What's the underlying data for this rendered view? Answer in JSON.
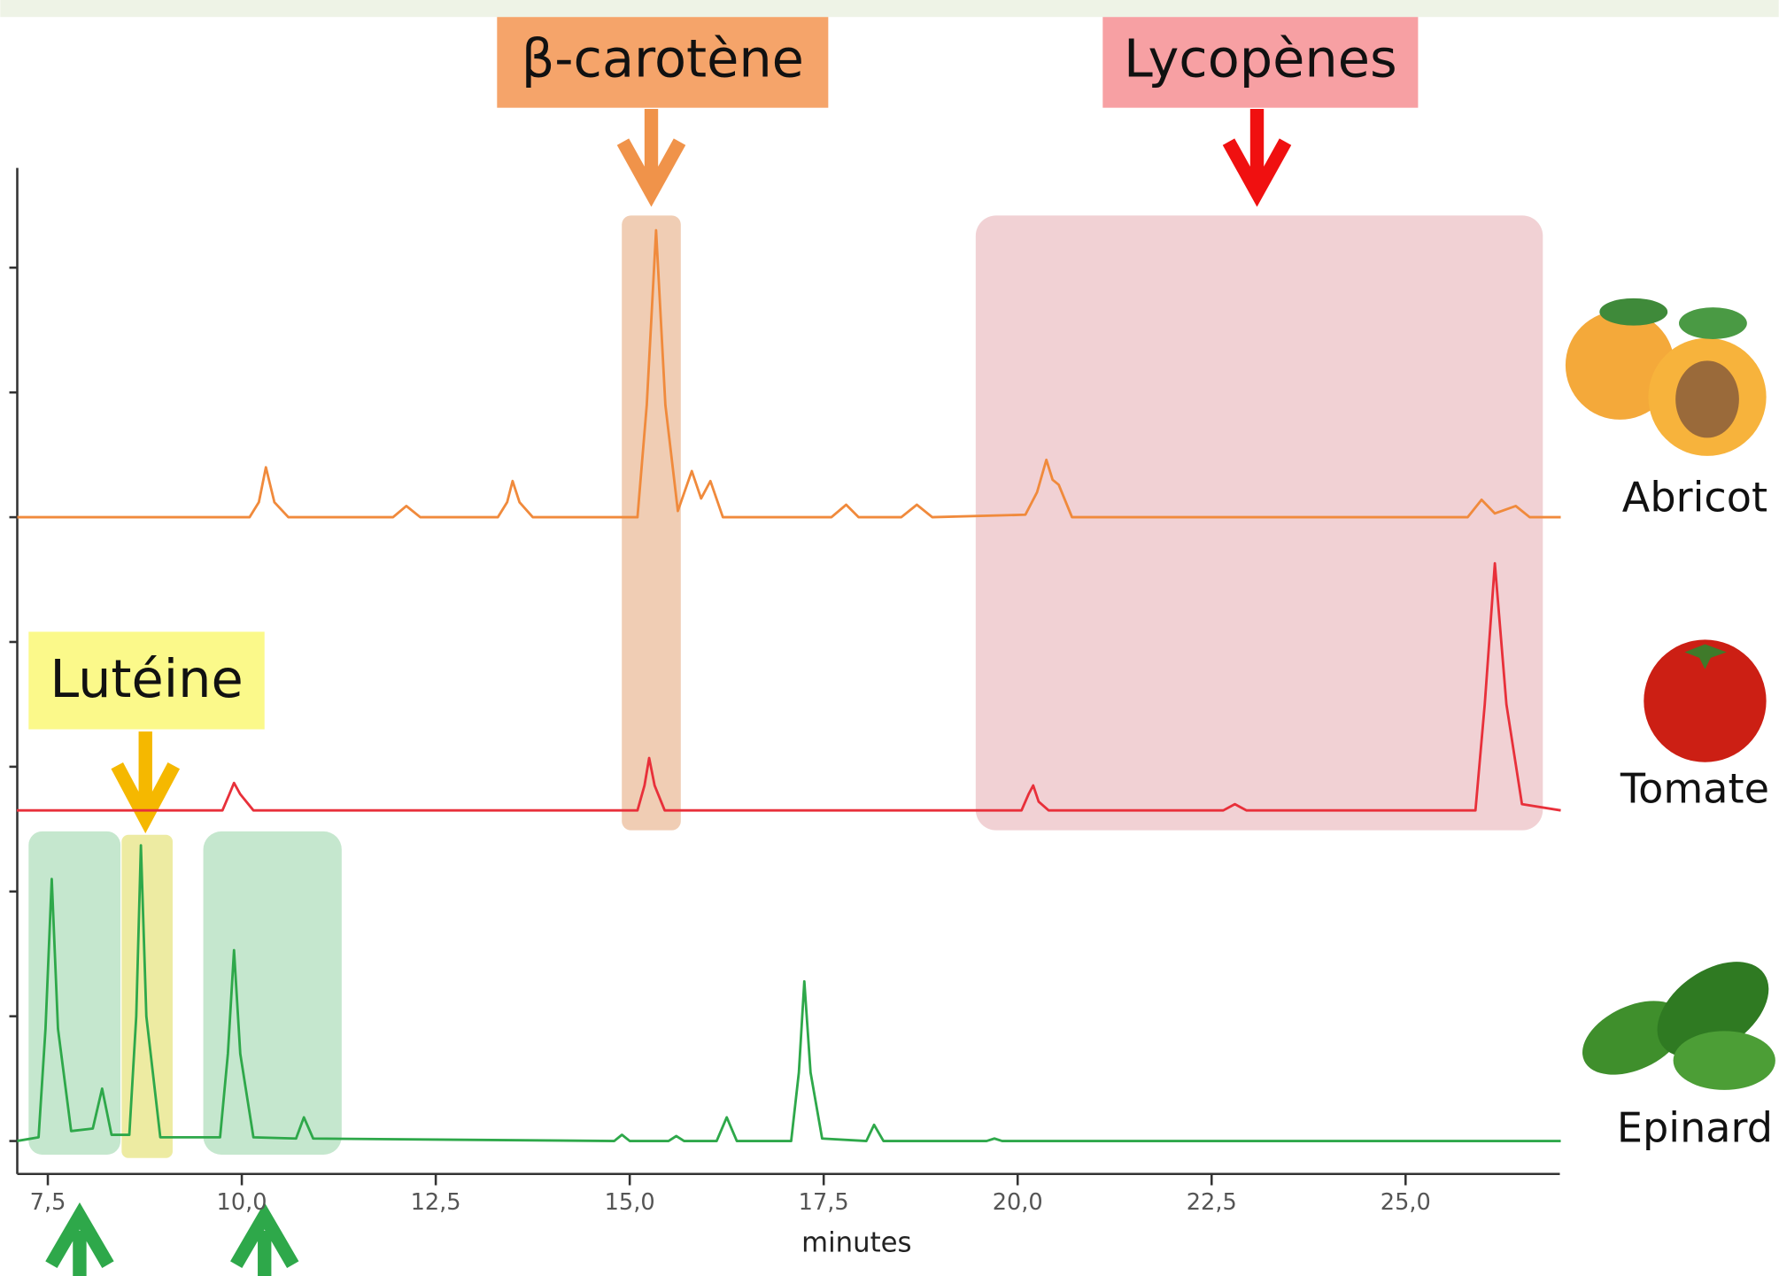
{
  "chart_data": {
    "type": "line",
    "xlabel": "minutes",
    "annotations": [
      "β-carotène",
      "Lycopènes",
      "Lutéine"
    ],
    "xlim": [
      7.1,
      27.0
    ],
    "xticks": [
      {
        "value": 7.5,
        "label": "7,5"
      },
      {
        "value": 10.0,
        "label": "10,0"
      },
      {
        "value": 12.5,
        "label": "12,5"
      },
      {
        "value": 15.0,
        "label": "15,0"
      },
      {
        "value": 17.5,
        "label": "17,5"
      },
      {
        "value": 20.0,
        "label": "20,0"
      },
      {
        "value": 22.5,
        "label": "22,5"
      },
      {
        "value": 25.0,
        "label": "25,0"
      }
    ],
    "ylim": [
      -0.2,
      7.8
    ],
    "yticks": [
      0,
      1,
      2,
      3,
      4,
      5,
      6,
      7
    ],
    "series": [
      {
        "name": "Abricot",
        "color": "#f08a3c",
        "x": [
          7.1,
          10.1,
          10.22,
          10.31,
          10.42,
          10.6,
          11.95,
          12.12,
          12.3,
          13.3,
          13.42,
          13.49,
          13.58,
          13.75,
          15.1,
          15.22,
          15.34,
          15.46,
          15.62,
          15.8,
          15.92,
          16.04,
          16.2,
          17.6,
          17.79,
          17.95,
          18.5,
          18.7,
          18.9,
          20.1,
          20.25,
          20.37,
          20.45,
          20.53,
          20.7,
          25.8,
          25.98,
          26.15,
          26.42,
          26.6,
          27.0
        ],
        "values": [
          5,
          5,
          5.12,
          5.4,
          5.12,
          5,
          5,
          5.09,
          5,
          5,
          5.12,
          5.29,
          5.12,
          5,
          5,
          5.9,
          7.3,
          5.9,
          5.05,
          5.37,
          5.15,
          5.29,
          5,
          5,
          5.1,
          5,
          5,
          5.1,
          5,
          5.02,
          5.2,
          5.46,
          5.3,
          5.26,
          5,
          5,
          5.14,
          5.03,
          5.09,
          5,
          5
        ]
      },
      {
        "name": "Tomate",
        "color": "#e8303a",
        "x": [
          7.1,
          9.75,
          9.84,
          9.9,
          9.98,
          10.15,
          15.1,
          15.19,
          15.25,
          15.32,
          15.45,
          20.05,
          20.14,
          20.2,
          20.27,
          20.4,
          22.65,
          22.8,
          22.95,
          25.9,
          26.02,
          26.15,
          26.3,
          26.5,
          27.0
        ],
        "values": [
          2.65,
          2.65,
          2.78,
          2.87,
          2.78,
          2.65,
          2.65,
          2.85,
          3.07,
          2.85,
          2.65,
          2.65,
          2.78,
          2.85,
          2.72,
          2.65,
          2.65,
          2.7,
          2.65,
          2.65,
          3.5,
          4.63,
          3.5,
          2.7,
          2.65
        ]
      },
      {
        "name": "Epinard",
        "color": "#2ea84a",
        "x": [
          7.1,
          7.38,
          7.47,
          7.55,
          7.63,
          7.8,
          8.08,
          8.2,
          8.32,
          8.55,
          8.64,
          8.7,
          8.77,
          8.95,
          9.72,
          9.82,
          9.9,
          9.98,
          10.15,
          10.7,
          10.8,
          10.92,
          14.8,
          14.9,
          15.0,
          15.5,
          15.6,
          15.7,
          16.12,
          16.25,
          16.38,
          17.08,
          17.18,
          17.25,
          17.33,
          17.48,
          18.05,
          18.15,
          18.27,
          19.6,
          19.7,
          19.8,
          27.0
        ],
        "values": [
          0,
          0.03,
          0.9,
          2.1,
          0.9,
          0.08,
          0.1,
          0.42,
          0.05,
          0.05,
          1.0,
          2.37,
          1.0,
          0.03,
          0.03,
          0.7,
          1.53,
          0.7,
          0.03,
          0.02,
          0.19,
          0.02,
          0,
          0.05,
          0,
          0,
          0.04,
          0,
          0,
          0.19,
          0,
          0,
          0.55,
          1.28,
          0.55,
          0.02,
          0,
          0.13,
          0,
          0,
          0.02,
          0,
          0
        ]
      }
    ]
  }
}
